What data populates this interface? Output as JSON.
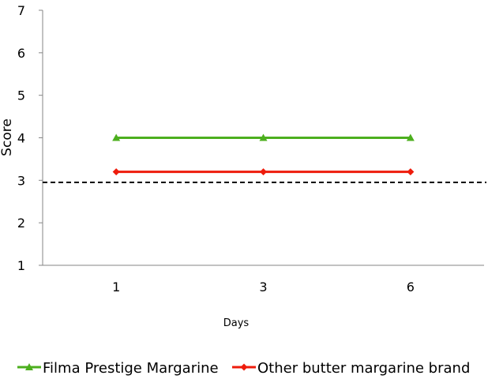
{
  "chart_data": {
    "type": "line",
    "categories": [
      "1",
      "3",
      "6"
    ],
    "series": [
      {
        "name": "Filma Prestige Margarine",
        "values": [
          4,
          4,
          4
        ],
        "color": "#4caf1e",
        "marker": "triangle"
      },
      {
        "name": "Other butter margarine brand",
        "values": [
          3.2,
          3.2,
          3.2
        ],
        "color": "#ee1c0c",
        "marker": "diamond"
      }
    ],
    "reference_line": {
      "value": 2.95,
      "style": "dashed",
      "color": "#000000"
    },
    "xlabel": "Days",
    "ylabel": "Score",
    "ylim": [
      1,
      7
    ],
    "yticks": [
      1,
      2,
      3,
      4,
      5,
      6,
      7
    ],
    "grid": false,
    "legend": "bottom"
  }
}
